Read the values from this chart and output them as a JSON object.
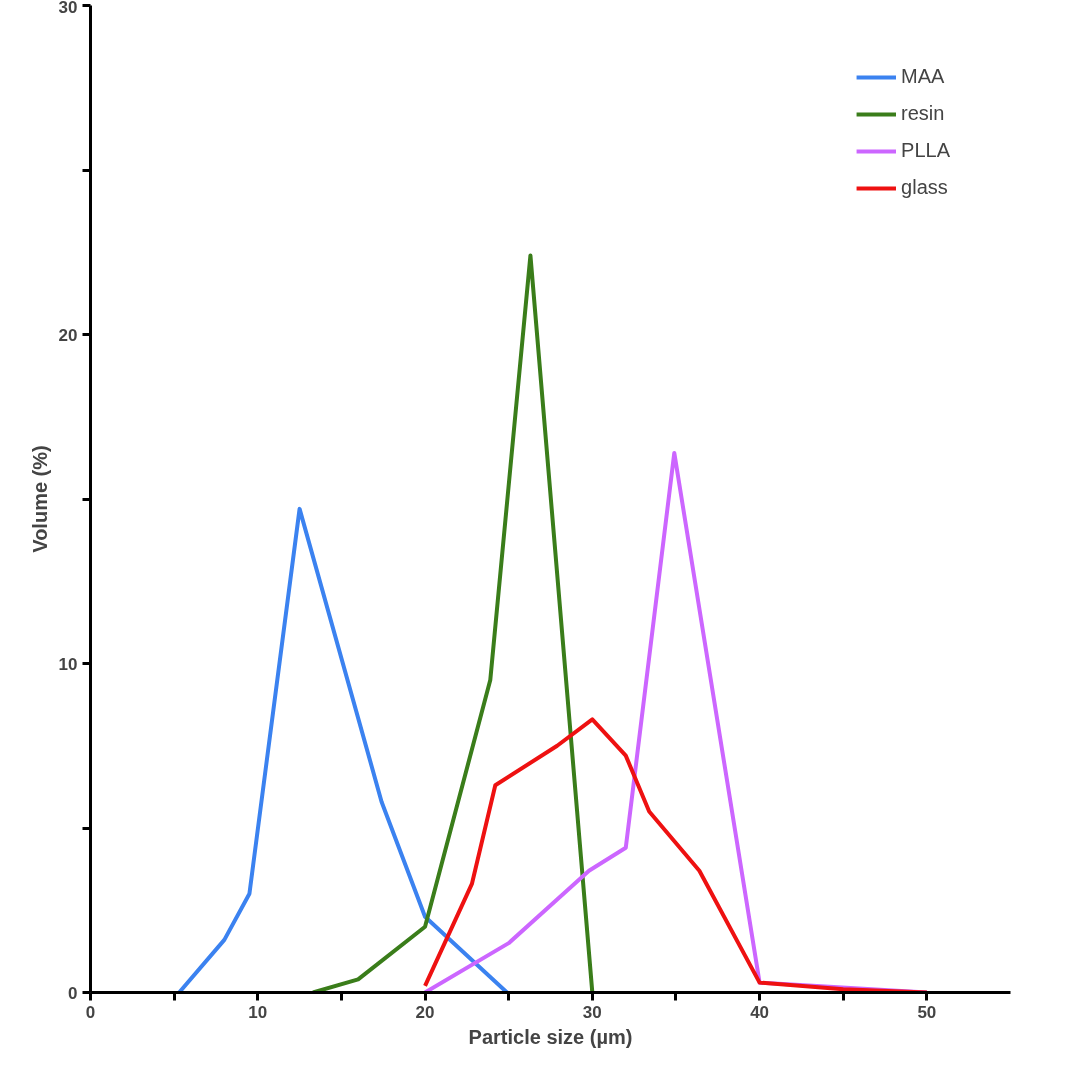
{
  "chart_data": {
    "type": "line",
    "xlabel": "Particle size (µm)",
    "ylabel": "Volume (%)",
    "xlim": [
      0,
      55
    ],
    "ylim": [
      0,
      30
    ],
    "xticks": [
      0,
      {
        "value": 5,
        "label": null
      },
      10,
      {
        "value": 15,
        "label": null
      },
      20,
      {
        "value": 25,
        "label": null
      },
      30,
      {
        "value": 35,
        "label": null
      },
      40,
      {
        "value": 45,
        "label": null
      },
      50
    ],
    "yticks": [
      0,
      {
        "value": 5,
        "label": null
      },
      10,
      {
        "value": 15,
        "label": null
      },
      20,
      {
        "value": 25,
        "label": null
      },
      30
    ],
    "grid": false,
    "legend": "top right",
    "marker": "none",
    "line_style": "solid",
    "series": [
      {
        "name": "MAA",
        "color": "#3b82f0",
        "x": [
          5.3,
          8,
          9.5,
          12.5,
          17.4,
          20,
          24.9
        ],
        "values": [
          0,
          1.6,
          3.0,
          14.7,
          5.8,
          2.3,
          0
        ]
      },
      {
        "name": "resin",
        "color": "#3a7d1a",
        "x": [
          13.3,
          16,
          20,
          23.9,
          26.3,
          30
        ],
        "values": [
          0,
          0.4,
          2.0,
          9.5,
          22.4,
          0
        ]
      },
      {
        "name": "PLLA",
        "color": "#cc66ff",
        "x": [
          20,
          25,
          29.8,
          32,
          34.9,
          40,
          50
        ],
        "values": [
          0,
          1.5,
          3.7,
          4.4,
          16.4,
          0.3,
          0
        ]
      },
      {
        "name": "glass",
        "color": "#ee1111",
        "x": [
          20,
          22.8,
          24.2,
          27.9,
          30,
          32,
          33.4,
          36.4,
          40,
          45,
          50
        ],
        "values": [
          0.2,
          3.3,
          6.3,
          7.5,
          8.3,
          7.2,
          5.5,
          3.7,
          0.3,
          0.1,
          0
        ]
      }
    ]
  }
}
